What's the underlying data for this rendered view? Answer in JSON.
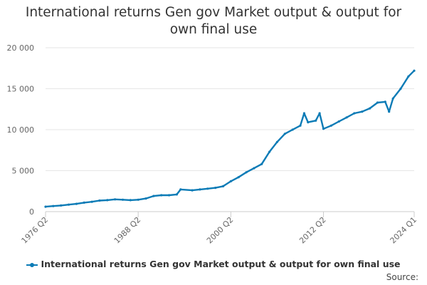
{
  "chart_data": {
    "type": "line",
    "title": "International returns Gen gov Market output & output for own final use",
    "xlabel": "",
    "ylabel": "",
    "ylim": [
      0,
      20000
    ],
    "yticks": [
      0,
      5000,
      10000,
      15000,
      20000
    ],
    "ytick_labels": [
      "0",
      "5 000",
      "10 000",
      "15 000",
      "20 000"
    ],
    "x_range": [
      "1976 Q2",
      "2024 Q1"
    ],
    "xtick_labels": [
      "1976 Q2",
      "1988 Q2",
      "2000 Q2",
      "2012 Q2",
      "2024 Q1"
    ],
    "grid": "horizontal",
    "legend_position": "bottom",
    "series": [
      {
        "name": "International returns Gen gov Market output & output for own final use",
        "color": "#0b7bb6",
        "points": [
          [
            "1976 Q2",
            600
          ],
          [
            "1977 Q2",
            680
          ],
          [
            "1978 Q2",
            750
          ],
          [
            "1979 Q2",
            850
          ],
          [
            "1980 Q2",
            950
          ],
          [
            "1981 Q2",
            1100
          ],
          [
            "1982 Q2",
            1200
          ],
          [
            "1983 Q2",
            1350
          ],
          [
            "1984 Q2",
            1400
          ],
          [
            "1985 Q2",
            1500
          ],
          [
            "1986 Q2",
            1450
          ],
          [
            "1987 Q2",
            1400
          ],
          [
            "1988 Q2",
            1450
          ],
          [
            "1989 Q2",
            1600
          ],
          [
            "1990 Q2",
            1900
          ],
          [
            "1991 Q2",
            2000
          ],
          [
            "1992 Q2",
            2000
          ],
          [
            "1993 Q2",
            2100
          ],
          [
            "1993 Q4",
            2700
          ],
          [
            "1995 Q2",
            2600
          ],
          [
            "1996 Q2",
            2700
          ],
          [
            "1997 Q2",
            2800
          ],
          [
            "1998 Q2",
            2900
          ],
          [
            "1999 Q2",
            3100
          ],
          [
            "2000 Q2",
            3700
          ],
          [
            "2001 Q2",
            4200
          ],
          [
            "2002 Q2",
            4800
          ],
          [
            "2003 Q2",
            5300
          ],
          [
            "2004 Q2",
            5800
          ],
          [
            "2005 Q2",
            7300
          ],
          [
            "2006 Q2",
            8500
          ],
          [
            "2007 Q2",
            9500
          ],
          [
            "2008 Q2",
            10000
          ],
          [
            "2009 Q2",
            10500
          ],
          [
            "2009 Q4",
            12000
          ],
          [
            "2010 Q2",
            10900
          ],
          [
            "2011 Q2",
            11100
          ],
          [
            "2011 Q4",
            12000
          ],
          [
            "2012 Q2",
            10100
          ],
          [
            "2013 Q2",
            10500
          ],
          [
            "2014 Q2",
            11000
          ],
          [
            "2015 Q2",
            11500
          ],
          [
            "2016 Q2",
            12000
          ],
          [
            "2017 Q2",
            12200
          ],
          [
            "2018 Q2",
            12600
          ],
          [
            "2019 Q2",
            13300
          ],
          [
            "2020 Q2",
            13400
          ],
          [
            "2020 Q4",
            12200
          ],
          [
            "2021 Q2",
            13800
          ],
          [
            "2022 Q2",
            15000
          ],
          [
            "2023 Q2",
            16500
          ],
          [
            "2024 Q1",
            17200
          ]
        ]
      }
    ]
  },
  "legend": {
    "label": "International returns Gen gov Market output & output for own final use"
  },
  "source_label": "Source:"
}
